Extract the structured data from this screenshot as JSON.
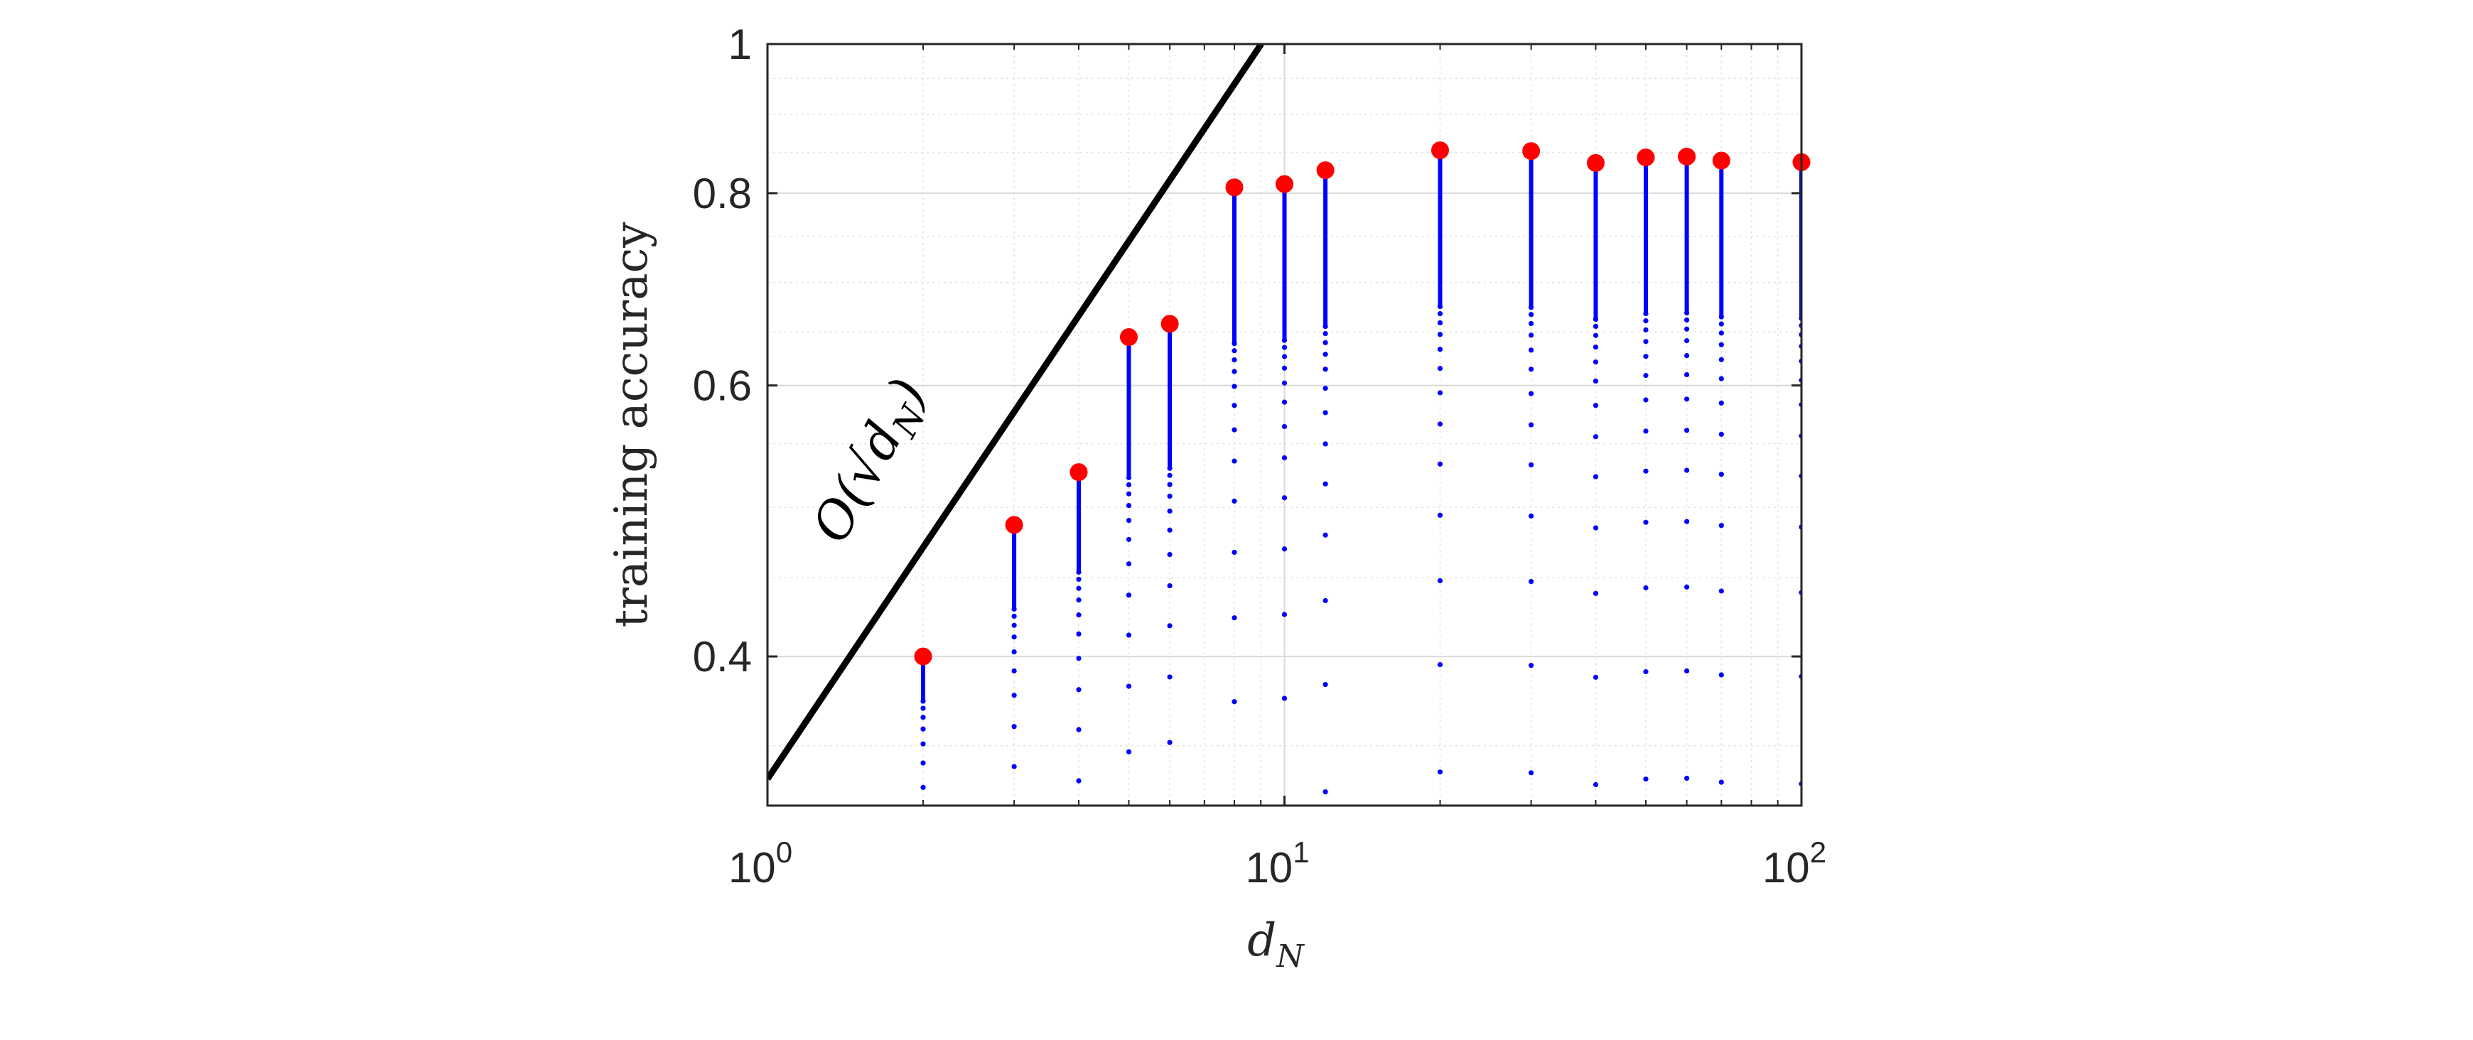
{
  "chart_data": {
    "type": "scatter",
    "title": "",
    "xlabel": "d",
    "xlabel_subscript": "N",
    "ylabel": "training accuracy",
    "xscale": "log",
    "yscale": "log",
    "xlim": [
      1,
      100
    ],
    "ylim": [
      0.32,
      1
    ],
    "grid": true,
    "minor_grid": true,
    "x_tick_labels": [
      {
        "base": "10",
        "exp": "0",
        "value": 1
      },
      {
        "base": "10",
        "exp": "1",
        "value": 10
      },
      {
        "base": "10",
        "exp": "2",
        "value": 100
      }
    ],
    "y_ticks": [
      0.4,
      0.6,
      0.8,
      1
    ],
    "y_tick_labels": [
      "0.4",
      "0.6",
      "0.8",
      "1"
    ],
    "colors": {
      "stem_dots": "#0000ff",
      "max_marker": "#ff0000",
      "reference_line": "#000000",
      "grid": "#d9d9d9",
      "axes": "#262626"
    },
    "reference_line": {
      "label_main": "O(√d",
      "label_sub": "N",
      "label_close": ")",
      "description": "slope 1/2 on log-log axes",
      "x0": 1,
      "y0": 0.333,
      "slope": 0.5
    },
    "series": [
      {
        "x": 2,
        "max": 0.4
      },
      {
        "x": 3,
        "max": 0.487
      },
      {
        "x": 4,
        "max": 0.527
      },
      {
        "x": 5,
        "max": 0.645
      },
      {
        "x": 6,
        "max": 0.658
      },
      {
        "x": 8,
        "max": 0.807
      },
      {
        "x": 10,
        "max": 0.811
      },
      {
        "x": 12,
        "max": 0.828
      },
      {
        "x": 20,
        "max": 0.853
      },
      {
        "x": 30,
        "max": 0.852
      },
      {
        "x": 40,
        "max": 0.837
      },
      {
        "x": 50,
        "max": 0.844
      },
      {
        "x": 60,
        "max": 0.845
      },
      {
        "x": 70,
        "max": 0.84
      },
      {
        "x": 100,
        "max": 0.838
      }
    ]
  }
}
